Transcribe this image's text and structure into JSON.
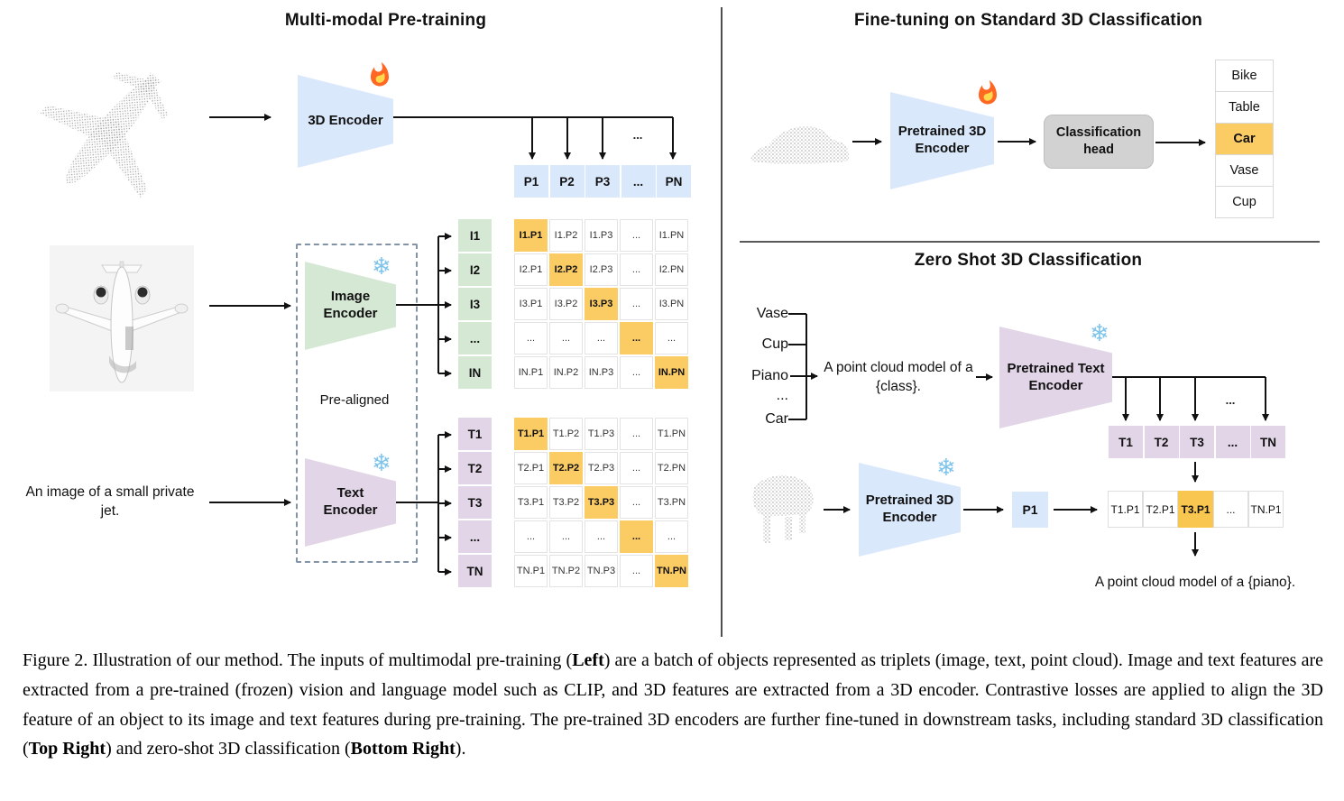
{
  "colors": {
    "blue": "#dae8fc",
    "green": "#d5e8d4",
    "purple": "#e1d5e7",
    "highlight": "#fbcb64"
  },
  "pretraining": {
    "title": "Multi-modal Pre-training",
    "encoder_3d_label": "3D Encoder",
    "image_encoder_label": "Image Encoder",
    "text_encoder_label": "Text Encoder",
    "prealigned_label": "Pre-aligned",
    "image_caption": "An image of a small private jet.",
    "row_ellipsis": "...",
    "p_row": [
      "P1",
      "P2",
      "P3",
      "...",
      "PN"
    ],
    "image_row_labels": [
      "I1",
      "I2",
      "I3",
      "...",
      "IN"
    ],
    "image_matrix": [
      [
        "I1.P1",
        "I1.P2",
        "I1.P3",
        "...",
        "I1.PN"
      ],
      [
        "I2.P1",
        "I2.P2",
        "I2.P3",
        "...",
        "I2.PN"
      ],
      [
        "I3.P1",
        "I3.P2",
        "I3.P3",
        "...",
        "I3.PN"
      ],
      [
        "...",
        "...",
        "...",
        "...",
        "..."
      ],
      [
        "IN.P1",
        "IN.P2",
        "IN.P3",
        "...",
        "IN.PN"
      ]
    ],
    "text_row_labels": [
      "T1",
      "T2",
      "T3",
      "...",
      "TN"
    ],
    "text_matrix": [
      [
        "T1.P1",
        "T1.P2",
        "T1.P3",
        "...",
        "T1.PN"
      ],
      [
        "T2.P1",
        "T2.P2",
        "T2.P3",
        "...",
        "T2.PN"
      ],
      [
        "T3.P1",
        "T3.P2",
        "T3.P3",
        "...",
        "T3.PN"
      ],
      [
        "...",
        "...",
        "...",
        "...",
        "..."
      ],
      [
        "TN.P1",
        "TN.P2",
        "TN.P3",
        "...",
        "TN.PN"
      ]
    ]
  },
  "finetuning": {
    "title": "Fine-tuning on Standard 3D Classification",
    "encoder_label": "Pretrained 3D Encoder",
    "head_label": "Classification head",
    "classes": [
      "Bike",
      "Table",
      "Car",
      "Vase",
      "Cup"
    ],
    "highlighted_class_index": 2
  },
  "zeroshot": {
    "title": "Zero Shot 3D Classification",
    "class_candidates": [
      "Vase",
      "Cup",
      "Piano",
      "...",
      "Car"
    ],
    "prompt": "A point cloud model of a {class}.",
    "text_encoder_label": "Pretrained Text Encoder",
    "encoder_label": "Pretrained 3D Encoder",
    "row_ellipsis": "...",
    "t_row": [
      "T1",
      "T2",
      "T3",
      "...",
      "TN"
    ],
    "p_cell": "P1",
    "similarity_row": [
      "T1.P1",
      "T2.P1",
      "T3.P1",
      "...",
      "TN.P1"
    ],
    "highlighted_similarity_index": 2,
    "result_prompt": "A point cloud model of a {piano}."
  },
  "icons": {
    "trainable": "fire-icon",
    "frozen": "snowflake-icon",
    "snowflake_glyph": "❄"
  },
  "caption": {
    "segments": [
      {
        "text": "Figure 2. Illustration of our method.  The inputs of multimodal pre-training (",
        "bold": false
      },
      {
        "text": "Left",
        "bold": true
      },
      {
        "text": ") are a batch of objects represented as triplets (image, text, point cloud).  Image and text features are extracted from a pre-trained (frozen) vision and language model such as CLIP, and 3D features are extracted from a 3D encoder.  Contrastive losses are applied to align the 3D feature of an object to its image and text features during pre-training.  The pre-trained 3D encoders are further fine-tuned in downstream tasks, including standard 3D classification (",
        "bold": false
      },
      {
        "text": "Top Right",
        "bold": true
      },
      {
        "text": ") and zero-shot 3D classification (",
        "bold": false
      },
      {
        "text": "Bottom Right",
        "bold": true
      },
      {
        "text": ").",
        "bold": false
      }
    ]
  }
}
